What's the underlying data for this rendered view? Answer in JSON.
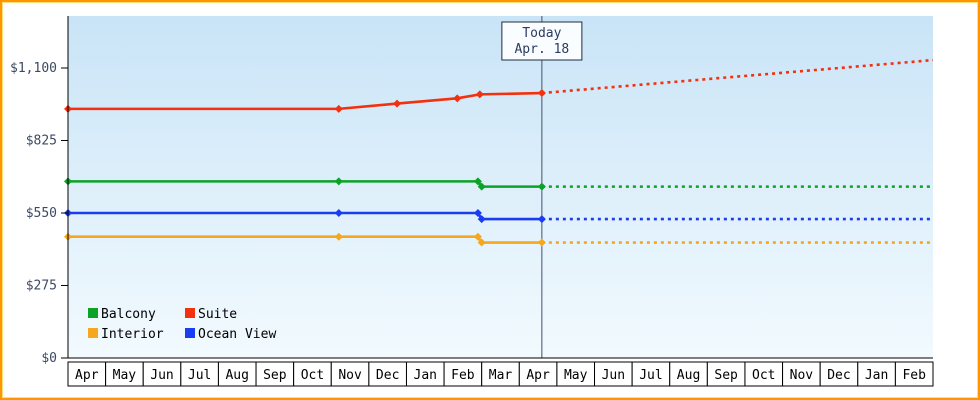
{
  "frame": {
    "border_color": "#ff9500",
    "inner_border_color": "#ffe07a"
  },
  "chart_data": {
    "type": "line",
    "title": "",
    "background_gradient": {
      "top": "#c9e4f7",
      "bottom": "#f2fafe"
    },
    "y_axis": {
      "max": 1100,
      "ticks": [
        {
          "value": 0,
          "label": "$0"
        },
        {
          "value": 275,
          "label": "$275"
        },
        {
          "value": 550,
          "label": "$550"
        },
        {
          "value": 825,
          "label": "$825"
        },
        {
          "value": 1100,
          "label": "$1,100"
        }
      ]
    },
    "x_axis": {
      "months": [
        "Apr",
        "May",
        "Jun",
        "Jul",
        "Aug",
        "Sep",
        "Oct",
        "Nov",
        "Dec",
        "Jan",
        "Feb",
        "Mar",
        "Apr",
        "May",
        "Jun",
        "Jul",
        "Aug",
        "Sep",
        "Oct",
        "Nov",
        "Dec",
        "Jan",
        "Feb"
      ]
    },
    "today": {
      "t": 12.6,
      "line1": "Today",
      "line2": "Apr. 18"
    },
    "series": [
      {
        "name": "Suite",
        "color": "#f3310e",
        "solid": [
          [
            0,
            945
          ],
          [
            7.2,
            945
          ],
          [
            8.75,
            965
          ],
          [
            10.35,
            985
          ],
          [
            10.95,
            1000
          ],
          [
            12.6,
            1005
          ]
        ],
        "markers": [
          [
            0,
            945
          ],
          [
            7.2,
            945
          ],
          [
            8.75,
            965
          ],
          [
            10.35,
            985
          ],
          [
            10.95,
            1000
          ],
          [
            12.6,
            1005
          ]
        ],
        "dotted": [
          [
            12.6,
            1005
          ],
          [
            23,
            1130
          ]
        ]
      },
      {
        "name": "Balcony",
        "color": "#0aa325",
        "solid": [
          [
            0,
            670
          ],
          [
            7.2,
            670
          ],
          [
            10.9,
            670
          ],
          [
            11.0,
            650
          ],
          [
            12.6,
            650
          ]
        ],
        "markers": [
          [
            0,
            670
          ],
          [
            7.2,
            670
          ],
          [
            10.9,
            670
          ],
          [
            11.0,
            650
          ],
          [
            12.6,
            650
          ]
        ],
        "dotted": [
          [
            12.6,
            650
          ],
          [
            23,
            650
          ]
        ]
      },
      {
        "name": "Ocean View",
        "color": "#1b3df2",
        "solid": [
          [
            0,
            550
          ],
          [
            7.2,
            550
          ],
          [
            10.9,
            550
          ],
          [
            11.0,
            527
          ],
          [
            12.6,
            527
          ]
        ],
        "markers": [
          [
            0,
            550
          ],
          [
            7.2,
            550
          ],
          [
            10.9,
            550
          ],
          [
            11.0,
            527
          ],
          [
            12.6,
            527
          ]
        ],
        "dotted": [
          [
            12.6,
            527
          ],
          [
            23,
            527
          ]
        ]
      },
      {
        "name": "Interior",
        "color": "#f5a71d",
        "solid": [
          [
            0,
            460
          ],
          [
            7.2,
            460
          ],
          [
            10.9,
            460
          ],
          [
            11.0,
            438
          ],
          [
            12.6,
            438
          ]
        ],
        "markers": [
          [
            0,
            460
          ],
          [
            7.2,
            460
          ],
          [
            10.9,
            460
          ],
          [
            11.0,
            438
          ],
          [
            12.6,
            438
          ]
        ],
        "dotted": [
          [
            12.6,
            438
          ],
          [
            23,
            438
          ]
        ]
      }
    ],
    "legend": [
      {
        "row": 0,
        "col": 0,
        "name": "Balcony"
      },
      {
        "row": 0,
        "col": 1,
        "name": "Suite"
      },
      {
        "row": 1,
        "col": 0,
        "name": "Interior"
      },
      {
        "row": 1,
        "col": 1,
        "name": "Ocean View"
      }
    ]
  }
}
